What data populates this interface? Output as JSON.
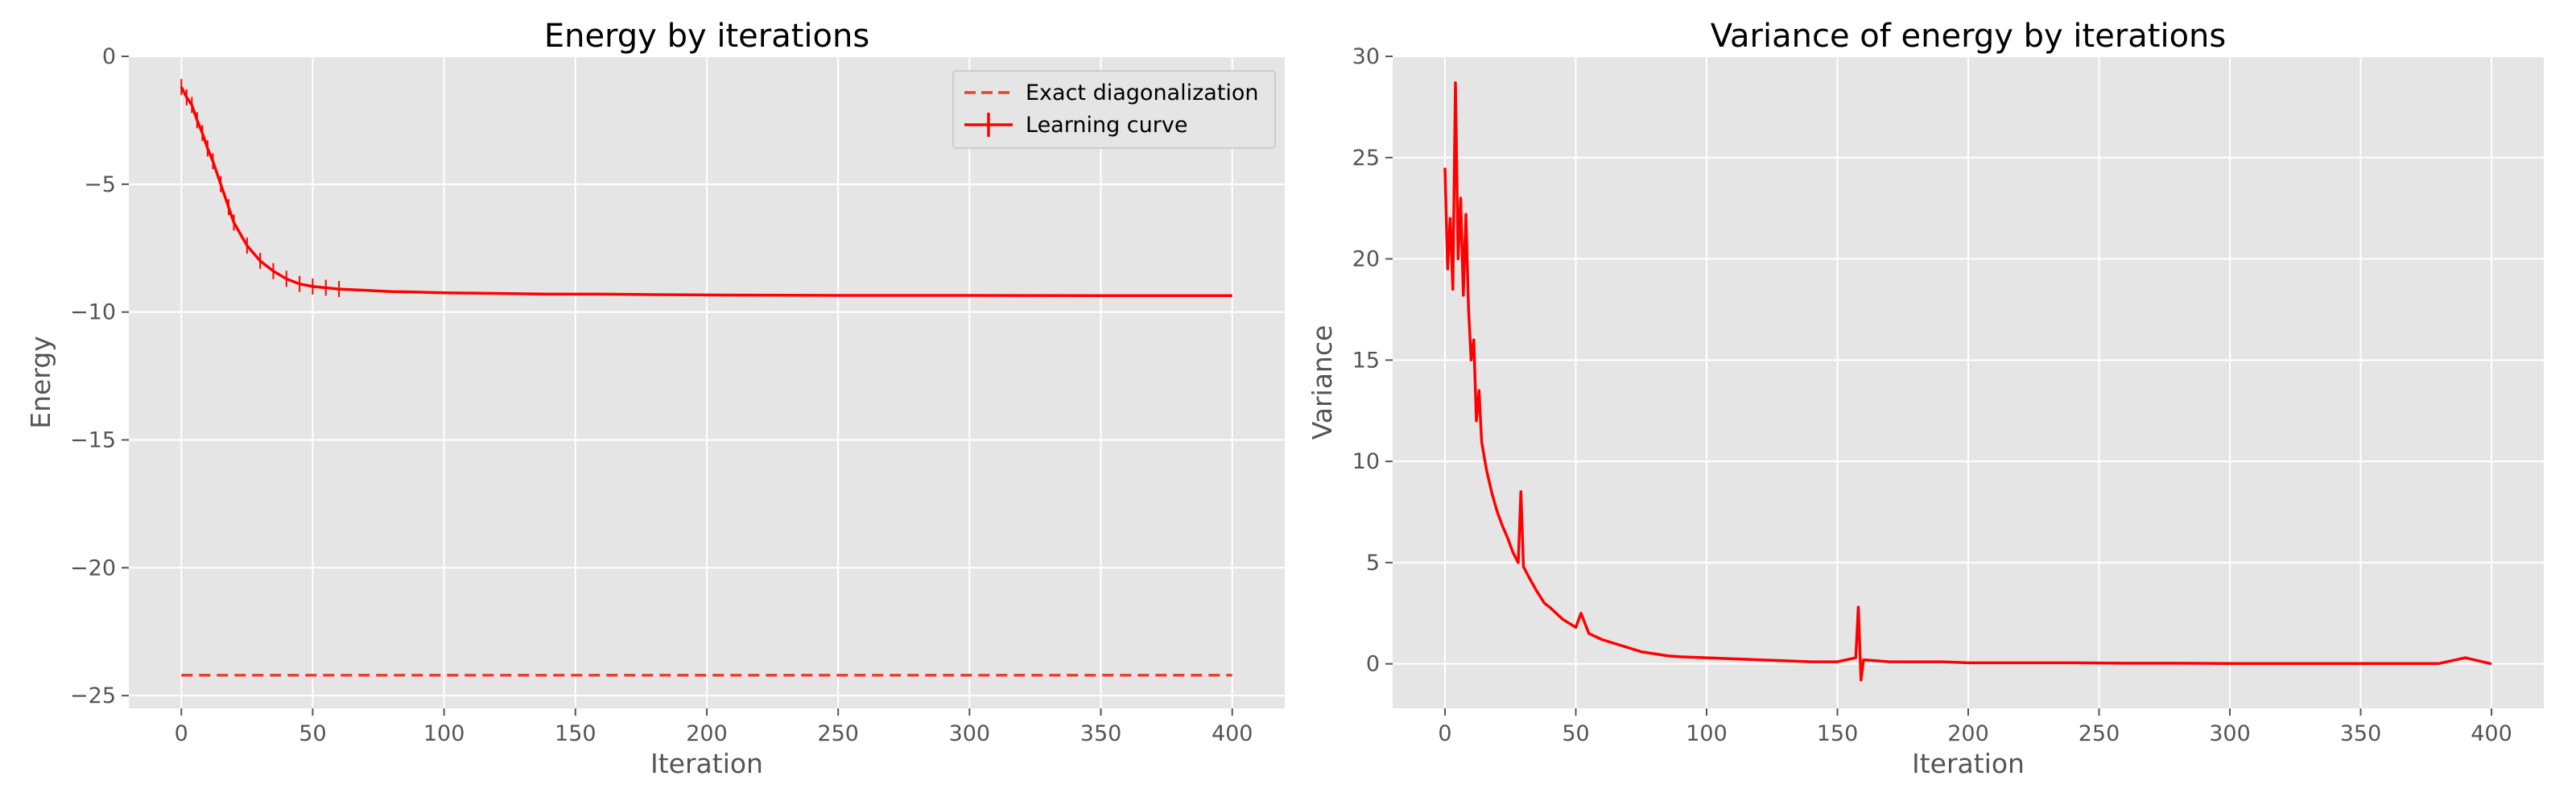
{
  "chart_data": [
    {
      "type": "line",
      "title": "Energy by iterations",
      "xlabel": "Iteration",
      "ylabel": "Energy",
      "xlim": [
        -20,
        420
      ],
      "ylim": [
        -25.5,
        0
      ],
      "xticks": [
        0,
        50,
        100,
        150,
        200,
        250,
        300,
        350,
        400
      ],
      "xtick_labels": [
        "0",
        "50",
        "100",
        "150",
        "200",
        "250",
        "300",
        "350",
        "400"
      ],
      "yticks": [
        0,
        -5,
        -10,
        -15,
        -20,
        -25
      ],
      "ytick_labels": [
        "0",
        "−5",
        "−10",
        "−15",
        "−20",
        "−25"
      ],
      "grid": true,
      "legend_position": "top-right",
      "series": [
        {
          "name": "Exact diagonalization",
          "style": "dashed",
          "color": "#e8412c",
          "x": [
            0,
            400
          ],
          "y": [
            -24.2,
            -24.2
          ]
        },
        {
          "name": "Learning curve",
          "style": "solid-errorbar",
          "color": "#ff0000",
          "x": [
            0,
            2,
            4,
            6,
            8,
            10,
            12,
            15,
            18,
            20,
            25,
            30,
            35,
            40,
            45,
            50,
            55,
            60,
            70,
            80,
            90,
            100,
            120,
            140,
            160,
            180,
            200,
            250,
            300,
            350,
            400
          ],
          "y": [
            -1.2,
            -1.6,
            -1.9,
            -2.5,
            -3.0,
            -3.6,
            -4.1,
            -5.0,
            -5.9,
            -6.5,
            -7.4,
            -8.0,
            -8.4,
            -8.7,
            -8.9,
            -9.0,
            -9.05,
            -9.1,
            -9.15,
            -9.2,
            -9.22,
            -9.25,
            -9.27,
            -9.3,
            -9.3,
            -9.32,
            -9.33,
            -9.35,
            -9.35,
            -9.36,
            -9.36
          ]
        }
      ]
    },
    {
      "type": "line",
      "title": "Variance of energy by iterations",
      "xlabel": "Iteration",
      "ylabel": "Variance",
      "xlim": [
        -20,
        420
      ],
      "ylim": [
        -2.2,
        30
      ],
      "xticks": [
        0,
        50,
        100,
        150,
        200,
        250,
        300,
        350,
        400
      ],
      "xtick_labels": [
        "0",
        "50",
        "100",
        "150",
        "200",
        "250",
        "300",
        "350",
        "400"
      ],
      "yticks": [
        0,
        5,
        10,
        15,
        20,
        25,
        30
      ],
      "ytick_labels": [
        "0",
        "5",
        "10",
        "15",
        "20",
        "25",
        "30"
      ],
      "grid": true,
      "series": [
        {
          "style": "solid",
          "color": "#ff0000",
          "x": [
            0,
            1,
            2,
            3,
            4,
            5,
            6,
            7,
            8,
            9,
            10,
            11,
            12,
            13,
            14,
            15,
            16,
            18,
            20,
            22,
            24,
            26,
            28,
            29,
            30,
            32,
            35,
            38,
            40,
            45,
            50,
            52,
            55,
            60,
            65,
            70,
            75,
            80,
            85,
            90,
            100,
            110,
            120,
            130,
            140,
            150,
            157,
            158,
            159,
            160,
            170,
            180,
            190,
            200,
            220,
            240,
            260,
            280,
            300,
            320,
            340,
            360,
            380,
            390,
            400
          ],
          "y": [
            24.5,
            19.5,
            22.0,
            18.5,
            28.7,
            20.0,
            23.0,
            18.2,
            22.2,
            17.5,
            15.0,
            16.0,
            12.0,
            13.5,
            11.0,
            10.2,
            9.5,
            8.4,
            7.5,
            6.8,
            6.2,
            5.5,
            5.0,
            8.5,
            4.8,
            4.3,
            3.6,
            3.0,
            2.8,
            2.2,
            1.8,
            2.5,
            1.5,
            1.2,
            1.0,
            0.8,
            0.6,
            0.5,
            0.4,
            0.35,
            0.3,
            0.25,
            0.2,
            0.15,
            0.1,
            0.1,
            0.3,
            2.8,
            -0.8,
            0.2,
            0.1,
            0.1,
            0.1,
            0.05,
            0.05,
            0.05,
            0.03,
            0.03,
            0.02,
            0.02,
            0.02,
            0.02,
            0.02,
            0.3,
            0.0
          ]
        }
      ]
    }
  ]
}
